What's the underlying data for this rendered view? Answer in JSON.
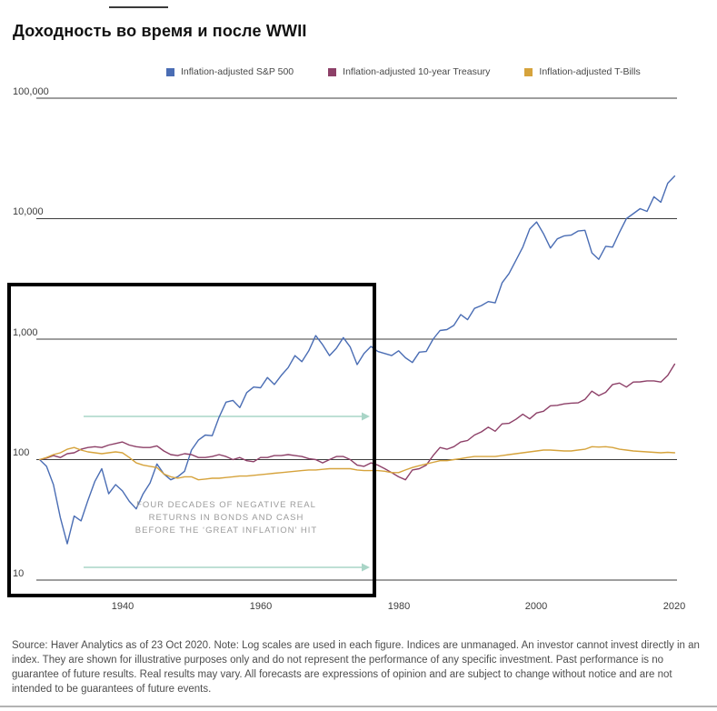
{
  "page": {
    "title": "Доходность во время и после WWII",
    "source_text": "Source: Haver Analytics as of 23 Oct 2020. Note: Log scales are used in each figure. Indices are unmanaged. An investor cannot invest directly in an index. They are shown for illustrative purposes only and do not represent the performance of any specific investment. Past performance is no guarantee of future results. Real results may vary. All forecasts are expressions of opinion and are subject to change without notice and are not intended to be guarantees of future events."
  },
  "annotation": {
    "lines": [
      "FOUR DECADES OF NEGATIVE REAL",
      "RETURNS IN BONDS AND CASH",
      "BEFORE THE ‘GREAT INFLATION’ HIT"
    ],
    "color": "#9b9b9b"
  },
  "chart_data": {
    "type": "line",
    "title": "Доходность во время и после WWII",
    "x_axis": {
      "ticks": [
        "1940",
        "1960",
        "1980",
        "2000",
        "2020"
      ],
      "tick_years": [
        1940,
        1960,
        1980,
        2000,
        2020
      ],
      "range": [
        1927,
        2021
      ]
    },
    "y_axis": {
      "scale": "log",
      "ticks": [
        "100,000",
        "10,000",
        "1,000",
        "100",
        "10"
      ],
      "tick_values": [
        100000,
        10000,
        1000,
        100,
        10
      ],
      "range": [
        10,
        100000
      ]
    },
    "grid": true,
    "legend_position": "top",
    "highlight_box_years": [
      1928,
      1977
    ],
    "arrows": {
      "color": "#a9d5c7",
      "count": 2
    },
    "years": [
      1928,
      1929,
      1930,
      1931,
      1932,
      1933,
      1934,
      1935,
      1936,
      1937,
      1938,
      1939,
      1940,
      1941,
      1942,
      1943,
      1944,
      1945,
      1946,
      1947,
      1948,
      1949,
      1950,
      1951,
      1952,
      1953,
      1954,
      1955,
      1956,
      1957,
      1958,
      1959,
      1960,
      1961,
      1962,
      1963,
      1964,
      1965,
      1966,
      1967,
      1968,
      1969,
      1970,
      1971,
      1972,
      1973,
      1974,
      1975,
      1976,
      1977,
      1978,
      1979,
      1980,
      1981,
      1982,
      1983,
      1984,
      1985,
      1986,
      1987,
      1988,
      1989,
      1990,
      1991,
      1992,
      1993,
      1994,
      1995,
      1996,
      1997,
      1998,
      1999,
      2000,
      2001,
      2002,
      2003,
      2004,
      2005,
      2006,
      2007,
      2008,
      2009,
      2010,
      2011,
      2012,
      2013,
      2014,
      2015,
      2016,
      2017,
      2018,
      2019,
      2020
    ],
    "series": [
      {
        "name": "Inflation-adjusted S&P 500",
        "color": "#4a6db4",
        "values": [
          100,
          88,
          62,
          33,
          20,
          34,
          31,
          46,
          66,
          84,
          52,
          62,
          55,
          45,
          39,
          52,
          64,
          92,
          76,
          68,
          72,
          80,
          120,
          145,
          160,
          158,
          225,
          300,
          310,
          270,
          360,
          400,
          395,
          480,
          420,
          500,
          580,
          730,
          650,
          800,
          1070,
          900,
          730,
          840,
          1030,
          860,
          615,
          760,
          870,
          790,
          760,
          730,
          800,
          700,
          640,
          780,
          790,
          1000,
          1180,
          1200,
          1300,
          1600,
          1450,
          1800,
          1900,
          2050,
          2000,
          2930,
          3500,
          4500,
          5800,
          8200,
          9400,
          7500,
          5700,
          6800,
          7200,
          7300,
          7900,
          8000,
          5200,
          4600,
          5900,
          5800,
          7700,
          10000,
          11000,
          12100,
          11500,
          15200,
          13700,
          19700,
          22600
        ]
      },
      {
        "name": "Inflation-adjusted 10-year Treasury",
        "color": "#8d4068",
        "values": [
          100,
          103,
          108,
          104,
          112,
          114,
          122,
          126,
          128,
          126,
          132,
          136,
          140,
          132,
          128,
          126,
          126,
          130,
          118,
          110,
          108,
          112,
          110,
          104,
          104,
          106,
          110,
          106,
          100,
          104,
          98,
          96,
          104,
          104,
          108,
          108,
          110,
          108,
          106,
          102,
          100,
          94,
          100,
          106,
          106,
          100,
          90,
          88,
          94,
          90,
          84,
          78,
          72,
          68,
          82,
          84,
          90,
          108,
          126,
          122,
          128,
          140,
          144,
          160,
          170,
          186,
          172,
          198,
          200,
          216,
          238,
          218,
          244,
          252,
          280,
          282,
          290,
          294,
          296,
          316,
          370,
          340,
          362,
          420,
          432,
          400,
          440,
          442,
          450,
          450,
          440,
          500,
          620
        ]
      },
      {
        "name": "Inflation-adjusted T-Bills",
        "color": "#d6a33c",
        "values": [
          100,
          104,
          110,
          114,
          122,
          126,
          120,
          116,
          114,
          112,
          114,
          116,
          114,
          104,
          94,
          90,
          88,
          86,
          76,
          72,
          70,
          72,
          72,
          68,
          69,
          70,
          70,
          71,
          72,
          73,
          73,
          74,
          75,
          76,
          77,
          78,
          79,
          80,
          81,
          82,
          82,
          83,
          84,
          84,
          84,
          84,
          82,
          81,
          81,
          81,
          80,
          78,
          78,
          82,
          86,
          89,
          92,
          95,
          98,
          98,
          100,
          102,
          104,
          106,
          106,
          106,
          106,
          108,
          110,
          112,
          114,
          116,
          118,
          120,
          120,
          119,
          118,
          118,
          120,
          122,
          128,
          127,
          128,
          126,
          122,
          120,
          118,
          117,
          116,
          115,
          114,
          115,
          114
        ]
      }
    ]
  }
}
